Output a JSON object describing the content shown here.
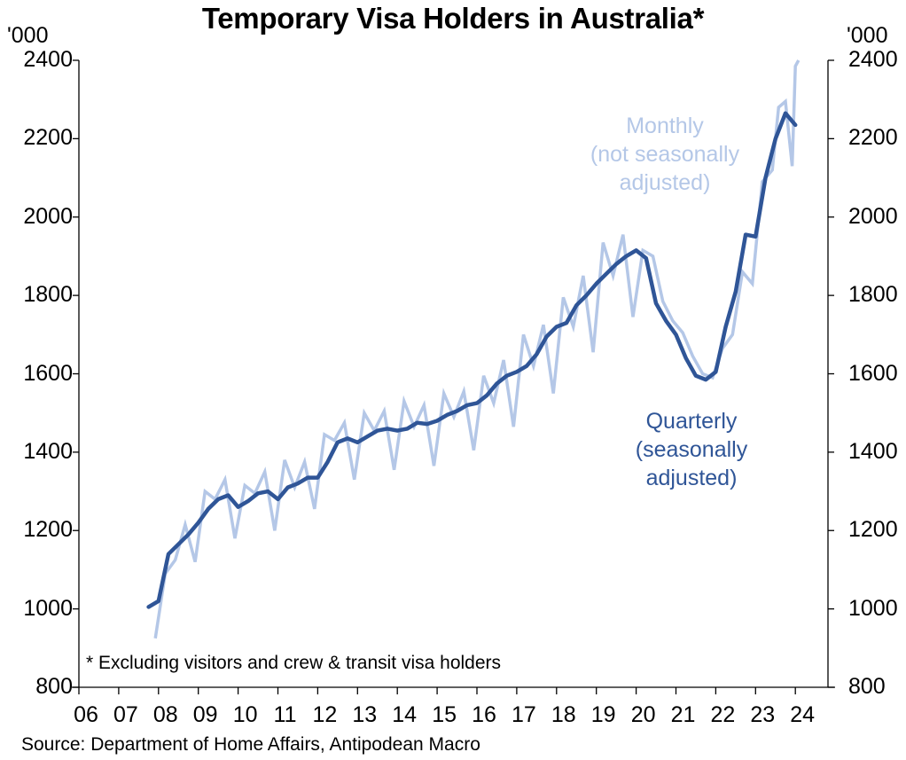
{
  "title": "Temporary Visa Holders in Australia*",
  "unit_left": "'000",
  "unit_right": "'000",
  "yticks": [
    "2400",
    "2200",
    "2000",
    "1800",
    "1600",
    "1400",
    "1200",
    "1000",
    "800"
  ],
  "xticks": [
    "06",
    "07",
    "08",
    "09",
    "10",
    "11",
    "12",
    "13",
    "14",
    "15",
    "16",
    "17",
    "18",
    "19",
    "20",
    "21",
    "22",
    "23",
    "24"
  ],
  "footnote": "* Excluding visitors and crew & transit visa holders",
  "source": "Source: Department of Home Affairs, Antipodean Macro",
  "labels": {
    "monthly": [
      "Monthly",
      "(not seasonally",
      "adjusted)"
    ],
    "quarterly": [
      "Quarterly",
      "(seasonally",
      "adjusted)"
    ]
  },
  "colors": {
    "quarterly": "#2f5597",
    "monthly": "#b4c7e7",
    "axis": "#000000"
  },
  "chart_data": {
    "type": "line",
    "title": "Temporary Visa Holders in Australia*",
    "xlabel": "",
    "ylabel": "'000",
    "ylim": [
      800,
      2400
    ],
    "xlim": [
      2006,
      2024.8
    ],
    "grid": false,
    "legend_position": "inline annotations",
    "annotations": [
      "Monthly (not seasonally adjusted)",
      "Quarterly (seasonally adjusted)",
      "* Excluding visitors and crew & transit visa holders"
    ],
    "series": [
      {
        "name": "Quarterly (seasonally adjusted)",
        "x": [
          2007.75,
          2008.0,
          2008.25,
          2008.5,
          2008.75,
          2009.0,
          2009.25,
          2009.5,
          2009.75,
          2010.0,
          2010.25,
          2010.5,
          2010.75,
          2011.0,
          2011.25,
          2011.5,
          2011.75,
          2012.0,
          2012.25,
          2012.5,
          2012.75,
          2013.0,
          2013.25,
          2013.5,
          2013.75,
          2014.0,
          2014.25,
          2014.5,
          2014.75,
          2015.0,
          2015.25,
          2015.5,
          2015.75,
          2016.0,
          2016.25,
          2016.5,
          2016.75,
          2017.0,
          2017.25,
          2017.5,
          2017.75,
          2018.0,
          2018.25,
          2018.5,
          2018.75,
          2019.0,
          2019.25,
          2019.5,
          2019.75,
          2020.0,
          2020.25,
          2020.5,
          2020.75,
          2021.0,
          2021.25,
          2021.5,
          2021.75,
          2022.0,
          2022.25,
          2022.5,
          2022.75,
          2023.0,
          2023.25,
          2023.5,
          2023.75,
          2024.0
        ],
        "values": [
          1005,
          1020,
          1140,
          1165,
          1190,
          1220,
          1255,
          1280,
          1290,
          1260,
          1275,
          1295,
          1300,
          1280,
          1310,
          1320,
          1335,
          1335,
          1375,
          1425,
          1435,
          1425,
          1440,
          1455,
          1460,
          1455,
          1460,
          1475,
          1472,
          1480,
          1495,
          1505,
          1520,
          1525,
          1545,
          1575,
          1595,
          1605,
          1620,
          1650,
          1695,
          1720,
          1730,
          1775,
          1800,
          1830,
          1855,
          1880,
          1900,
          1915,
          1895,
          1780,
          1735,
          1700,
          1640,
          1595,
          1585,
          1605,
          1720,
          1810,
          1955,
          1950,
          2100,
          2200,
          2265,
          2235
        ]
      },
      {
        "name": "Monthly (not seasonally adjusted)",
        "x": [
          2007.92,
          2008.17,
          2008.42,
          2008.67,
          2008.92,
          2009.17,
          2009.42,
          2009.67,
          2009.92,
          2010.17,
          2010.42,
          2010.67,
          2010.92,
          2011.17,
          2011.42,
          2011.67,
          2011.92,
          2012.17,
          2012.42,
          2012.67,
          2012.92,
          2013.17,
          2013.42,
          2013.67,
          2013.92,
          2014.17,
          2014.42,
          2014.67,
          2014.92,
          2015.17,
          2015.42,
          2015.67,
          2015.92,
          2016.17,
          2016.42,
          2016.67,
          2016.92,
          2017.17,
          2017.42,
          2017.67,
          2017.92,
          2018.17,
          2018.42,
          2018.67,
          2018.92,
          2019.17,
          2019.42,
          2019.67,
          2019.92,
          2020.17,
          2020.42,
          2020.67,
          2020.92,
          2021.17,
          2021.42,
          2021.67,
          2021.92,
          2022.17,
          2022.42,
          2022.67,
          2022.92,
          2023.17,
          2023.42,
          2023.58,
          2023.75,
          2023.92,
          2024.0,
          2024.08
        ],
        "values": [
          925,
          1090,
          1125,
          1215,
          1120,
          1300,
          1280,
          1330,
          1180,
          1315,
          1295,
          1350,
          1200,
          1380,
          1310,
          1375,
          1255,
          1445,
          1430,
          1475,
          1330,
          1500,
          1455,
          1505,
          1355,
          1530,
          1465,
          1520,
          1365,
          1550,
          1490,
          1555,
          1405,
          1595,
          1525,
          1635,
          1465,
          1700,
          1620,
          1725,
          1550,
          1795,
          1720,
          1850,
          1655,
          1935,
          1850,
          1955,
          1745,
          1915,
          1900,
          1785,
          1735,
          1705,
          1645,
          1600,
          1590,
          1665,
          1700,
          1860,
          1830,
          2090,
          2120,
          2280,
          2295,
          2130,
          2385,
          2400
        ]
      }
    ]
  }
}
